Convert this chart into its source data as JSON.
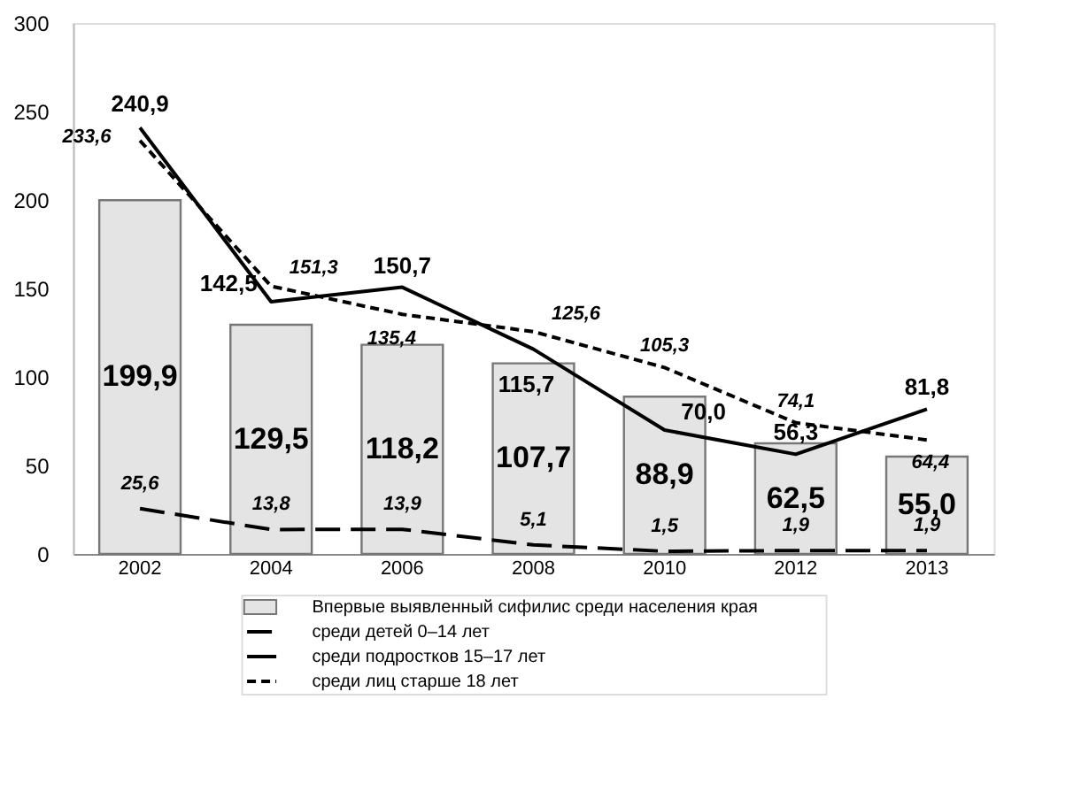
{
  "chart_data": {
    "type": "bar",
    "categories": [
      "2002",
      "2004",
      "2006",
      "2008",
      "2010",
      "2012",
      "2013"
    ],
    "ylim": [
      0,
      300
    ],
    "yticks": [
      0,
      50,
      100,
      150,
      200,
      250,
      300
    ],
    "grid": false,
    "legend": "bottom",
    "series": [
      {
        "name": "Впервые выявленный сифилис среди населения края",
        "color": "#e4e4e4",
        "values": [
          199.9,
          129.5,
          118.2,
          107.7,
          88.9,
          62.5,
          55.0
        ],
        "value_labels": [
          "199,9",
          "129,5",
          "118,2",
          "107,7",
          "88,9",
          "62,5",
          "55,0"
        ]
      },
      {
        "name": "среди детей 0–14 лет",
        "type": "line",
        "color": "#000000",
        "line_style": "dashed",
        "values": [
          25.6,
          13.8,
          13.9,
          5.1,
          1.5,
          1.9,
          1.9
        ],
        "value_labels": [
          "25,6",
          "13,8",
          "13,9",
          "5,1",
          "1,5",
          "1,9",
          "1,9"
        ]
      },
      {
        "name": "среди подростков 15–17 лет",
        "type": "line",
        "color": "#000000",
        "line_style": "solid",
        "values": [
          240.9,
          142.5,
          150.7,
          115.7,
          70.0,
          56.3,
          81.8
        ],
        "value_labels": [
          "240,9",
          "142,5",
          "150,7",
          "115,7",
          "70,0",
          "56,3",
          "81,8"
        ]
      },
      {
        "name": "среди лиц старше 18 лет",
        "type": "line",
        "color": "#000000",
        "line_style": "dotted",
        "values": [
          233.6,
          151.3,
          135.4,
          125.6,
          105.3,
          74.1,
          64.4
        ],
        "value_labels": [
          "233,6",
          "151,3",
          "135,4",
          "125,6",
          "105,3",
          "74,1",
          "64,4"
        ]
      }
    ]
  }
}
